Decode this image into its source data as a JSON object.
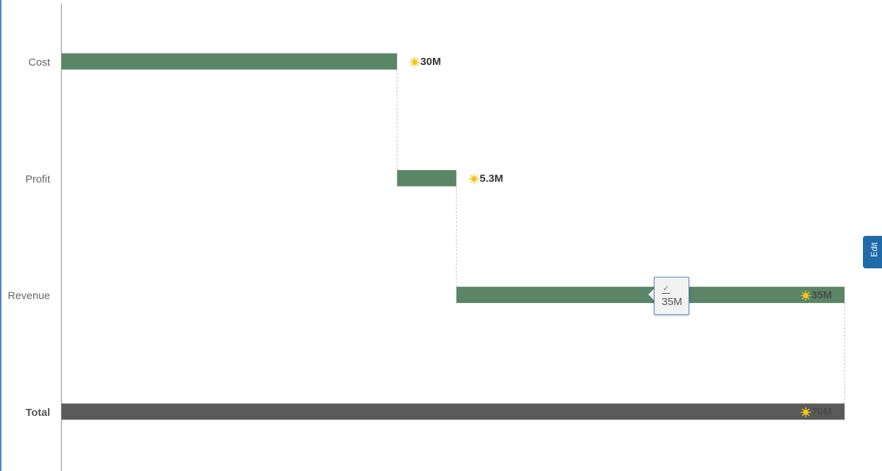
{
  "chart_data": {
    "type": "bar",
    "orientation": "horizontal",
    "subtype": "waterfall",
    "categories": [
      "Cost",
      "Profit",
      "Revenue",
      "Total"
    ],
    "steps": [
      {
        "category": "Cost",
        "start": 0,
        "end": 30,
        "label": "30M",
        "kind": "step"
      },
      {
        "category": "Profit",
        "start": 30,
        "end": 35.3,
        "label": "5.3M",
        "kind": "step"
      },
      {
        "category": "Revenue",
        "start": 35.3,
        "end": 70,
        "label": "35M",
        "kind": "step"
      },
      {
        "category": "Total",
        "start": 0,
        "end": 70,
        "label": "70M",
        "kind": "total"
      }
    ],
    "unit": "M",
    "xlim": [
      0,
      70
    ],
    "grid": false,
    "colors": {
      "step": "#5a8566",
      "total": "#5a5a5a",
      "connector": "#aaaaaa",
      "axis": "#aaaaaa",
      "icon": "#f5c518"
    }
  },
  "tooltip": {
    "value": "35M",
    "icon": "check-icon"
  },
  "edit_tab": {
    "label": "Edit"
  }
}
